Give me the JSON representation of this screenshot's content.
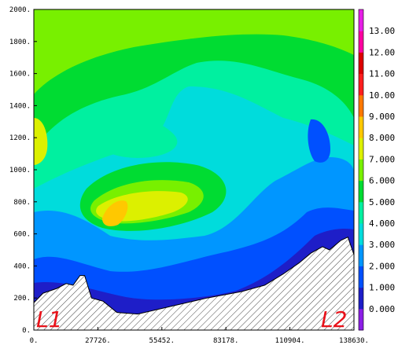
{
  "chart_data": {
    "type": "heatmap",
    "title": "",
    "xlabel": "",
    "ylabel": "",
    "x_ticks": [
      "0.",
      "27726.",
      "55452.",
      "83178.",
      "110904.",
      "138630."
    ],
    "y_ticks": [
      "0.",
      "200.",
      "400.",
      "600.",
      "800.",
      "1000.",
      "1200.",
      "1400.",
      "1600.",
      "1800.",
      "2000."
    ],
    "xlim": [
      0,
      138630
    ],
    "ylim": [
      0,
      2000
    ],
    "segment_labels": [
      "L1",
      "L2"
    ],
    "colorbar": {
      "labels": [
        "0.000",
        "1.000",
        "2.000",
        "3.000",
        "4.000",
        "5.000",
        "6.000",
        "7.000",
        "8.000",
        "9.000",
        "10.00",
        "11.00",
        "12.00",
        "13.00"
      ],
      "levels": [
        0,
        1,
        2,
        3,
        4,
        5,
        6,
        7,
        8,
        9,
        10,
        11,
        12,
        13
      ],
      "colors": [
        "#8c1ee6",
        "#1e1ec8",
        "#0050ff",
        "#0096ff",
        "#00dcdc",
        "#00f0a0",
        "#00dc32",
        "#78f000",
        "#dcf000",
        "#ffc800",
        "#ff7800",
        "#ff1e1e",
        "#dc0000",
        "#ff00a0",
        "#e61ee6"
      ]
    },
    "grid": false,
    "terrain_x": [
      0,
      4000,
      10000,
      14000,
      17000,
      20000,
      22000,
      25000,
      30000,
      36000,
      45000,
      60000,
      75000,
      90000,
      100000,
      108000,
      115000,
      120000,
      125000,
      128000,
      133000,
      136000,
      138630
    ],
    "terrain_y": [
      170,
      230,
      260,
      290,
      280,
      340,
      340,
      200,
      180,
      110,
      100,
      150,
      200,
      240,
      280,
      350,
      420,
      480,
      520,
      500,
      560,
      580,
      470
    ]
  }
}
